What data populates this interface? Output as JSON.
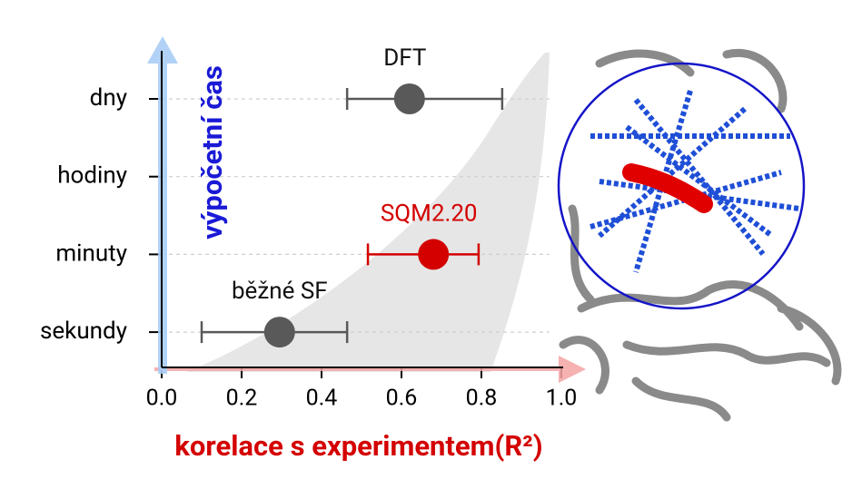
{
  "chart_data": {
    "type": "scatter",
    "x_label": "korelace s experimentem(R²)",
    "y_label": "výpočetní čas",
    "categories": [
      "dny",
      "hodiny",
      "minuty",
      "sekundy"
    ],
    "xlim": [
      0,
      1.0
    ],
    "xticks": [
      {
        "value": 0,
        "label": "0.0"
      },
      {
        "value": 0.2,
        "label": "0.2"
      },
      {
        "value": 0.4,
        "label": "0.4"
      },
      {
        "value": 0.6,
        "label": "0.6"
      },
      {
        "value": 0.8,
        "label": "0.8"
      },
      {
        "value": 1.0,
        "label": "1.0"
      }
    ],
    "grid": true,
    "series": [
      {
        "name": "DFT",
        "color": "#595959",
        "y": [
          "dny"
        ],
        "x": [
          0.62
        ],
        "x_low": [
          0.464
        ],
        "x_high": [
          0.852
        ]
      },
      {
        "name": "SQM2.20",
        "color": "#d40000",
        "y": [
          "minuty"
        ],
        "x": [
          0.68
        ],
        "x_low": [
          0.516
        ],
        "x_high": [
          0.793
        ]
      },
      {
        "name": "běžné SF",
        "color": "#595959",
        "y": [
          "sekundy"
        ],
        "x": [
          0.295
        ],
        "x_low": [
          0.1
        ],
        "x_high": [
          0.464
        ]
      }
    ]
  }
}
